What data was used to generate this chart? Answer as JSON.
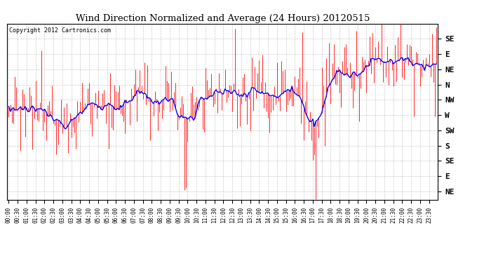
{
  "title": "Wind Direction Normalized and Average (24 Hours) 20120515",
  "copyright_text": "Copyright 2012 Cartronics.com",
  "bg_color": "#ffffff",
  "plot_bg_color": "#ffffff",
  "grid_color": "#bbbbbb",
  "bar_color": "#ff0000",
  "avg_color": "#0000ff",
  "y_tick_labels": [
    "SE",
    "E",
    "NE",
    "N",
    "NW",
    "W",
    "SW",
    "S",
    "SE",
    "E",
    "NE"
  ],
  "y_tick_values": [
    360,
    315,
    270,
    225,
    180,
    135,
    90,
    45,
    0,
    -45,
    -90
  ],
  "y_min": -115,
  "y_max": 405,
  "num_points": 288,
  "tick_every_n": 6,
  "avg_window": 15,
  "noise_scale": 55,
  "seed": 12345
}
